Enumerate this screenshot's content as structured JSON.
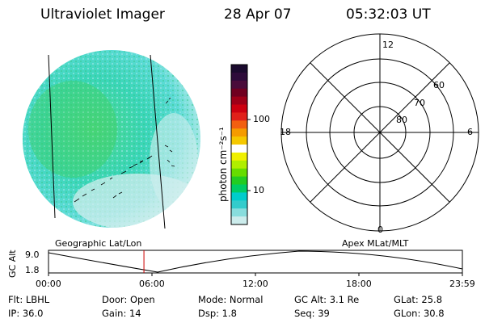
{
  "header": {
    "instrument": "Ultraviolet Imager",
    "date": "28 Apr 07",
    "time": "05:32:03 UT"
  },
  "colorbar": {
    "unit_label": "photon cm⁻²s⁻¹",
    "ticks": [
      "100",
      "10"
    ],
    "colors": [
      "#1a0a2e",
      "#2d0b3a",
      "#4a0c3a",
      "#700020",
      "#9e0018",
      "#cc0010",
      "#e0201a",
      "#f25f10",
      "#f59b00",
      "#f5c800",
      "#ffffff",
      "#f0f000",
      "#b0ee00",
      "#66dd00",
      "#22cc22",
      "#00cc66",
      "#00cccc",
      "#33cccc",
      "#88dddd",
      "#ccecec"
    ]
  },
  "polar": {
    "mlt_labels": {
      "top": "12",
      "left": "18",
      "right": "6",
      "bottom": "0"
    },
    "lat_labels": [
      "60",
      "70",
      "80"
    ]
  },
  "timeline": {
    "ylabel": "GC Alt",
    "y_ticks": [
      "9.0",
      "1.8"
    ],
    "left_caption": "Geographic Lat/Lon",
    "right_caption": "Apex MLat/MLT",
    "x_ticks": [
      "00:00",
      "06:00",
      "12:00",
      "18:00",
      "23:59"
    ],
    "current_time_fraction": 0.2306,
    "marker_color": "#cc0000"
  },
  "info": {
    "flt": "Flt: LBHL",
    "ip": "IP: 36.0",
    "door": "Door: Open",
    "gain": "Gain: 14",
    "mode": "Mode: Normal",
    "dsp": "Dsp:    1.8",
    "gcalt": "GC Alt: 3.1 Re",
    "seq": "Seq: 39",
    "glat": "GLat:    25.8",
    "glon": "GLon:    30.8"
  }
}
